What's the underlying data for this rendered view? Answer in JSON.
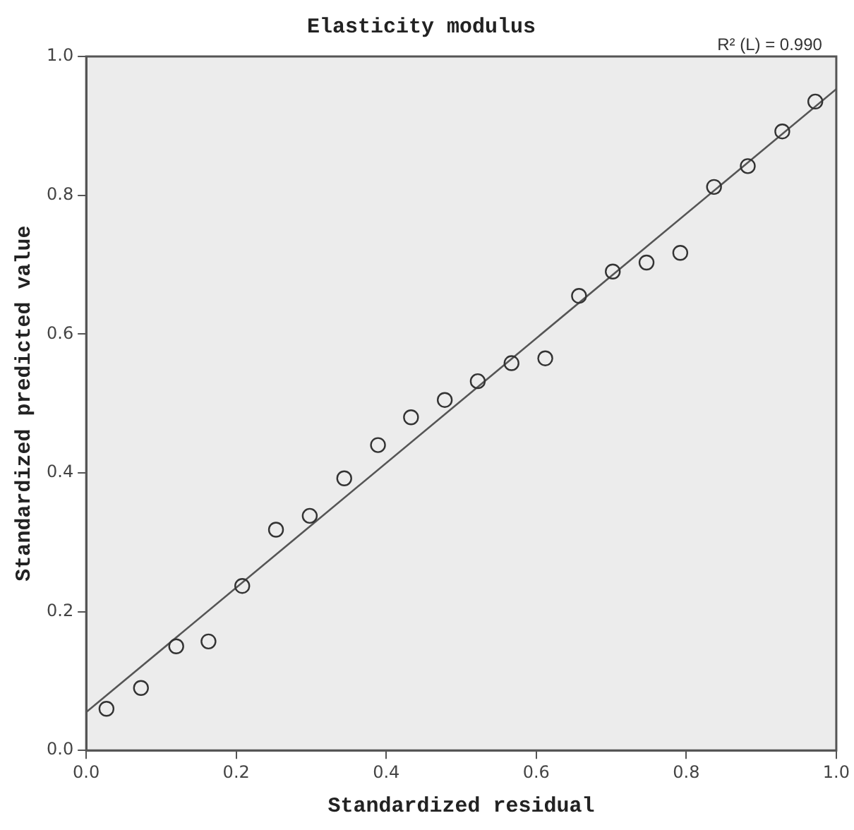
{
  "chart_data": {
    "type": "scatter",
    "title": "Elasticity modulus",
    "xlabel": "Standardized residual",
    "ylabel": "Standardized predicted value",
    "annotations": [
      "R² (L) = 0.990"
    ],
    "series": [
      {
        "color": "#333333",
        "marker": "circle",
        "x": [
          0.027,
          0.073,
          0.12,
          0.163,
          0.208,
          0.253,
          0.298,
          0.344,
          0.389,
          0.433,
          0.478,
          0.522,
          0.567,
          0.612,
          0.657,
          0.702,
          0.747,
          0.792,
          0.837,
          0.882,
          0.928,
          0.972
        ],
        "values": [
          0.06,
          0.09,
          0.15,
          0.157,
          0.237,
          0.318,
          0.338,
          0.392,
          0.44,
          0.48,
          0.505,
          0.532,
          0.558,
          0.565,
          0.655,
          0.69,
          0.703,
          0.717,
          0.812,
          0.842,
          0.892,
          0.935
        ]
      },
      {
        "type": "line",
        "color": "#555555",
        "marker": "none",
        "x": [
          0,
          1
        ],
        "values": [
          0.055,
          0.953
        ]
      }
    ],
    "xlim": [
      0,
      1
    ],
    "ylim": [
      0,
      1
    ],
    "xticks": [
      {
        "value": 0,
        "label": "0.0"
      },
      0.2,
      0.4,
      0.6,
      0.8,
      {
        "value": 1,
        "label": "1.0"
      }
    ],
    "yticks": [
      {
        "value": 0,
        "label": "0.0"
      },
      0.2,
      0.4,
      0.6,
      0.8,
      {
        "value": 1,
        "label": "1.0"
      }
    ],
    "grid": false,
    "legend": false
  }
}
